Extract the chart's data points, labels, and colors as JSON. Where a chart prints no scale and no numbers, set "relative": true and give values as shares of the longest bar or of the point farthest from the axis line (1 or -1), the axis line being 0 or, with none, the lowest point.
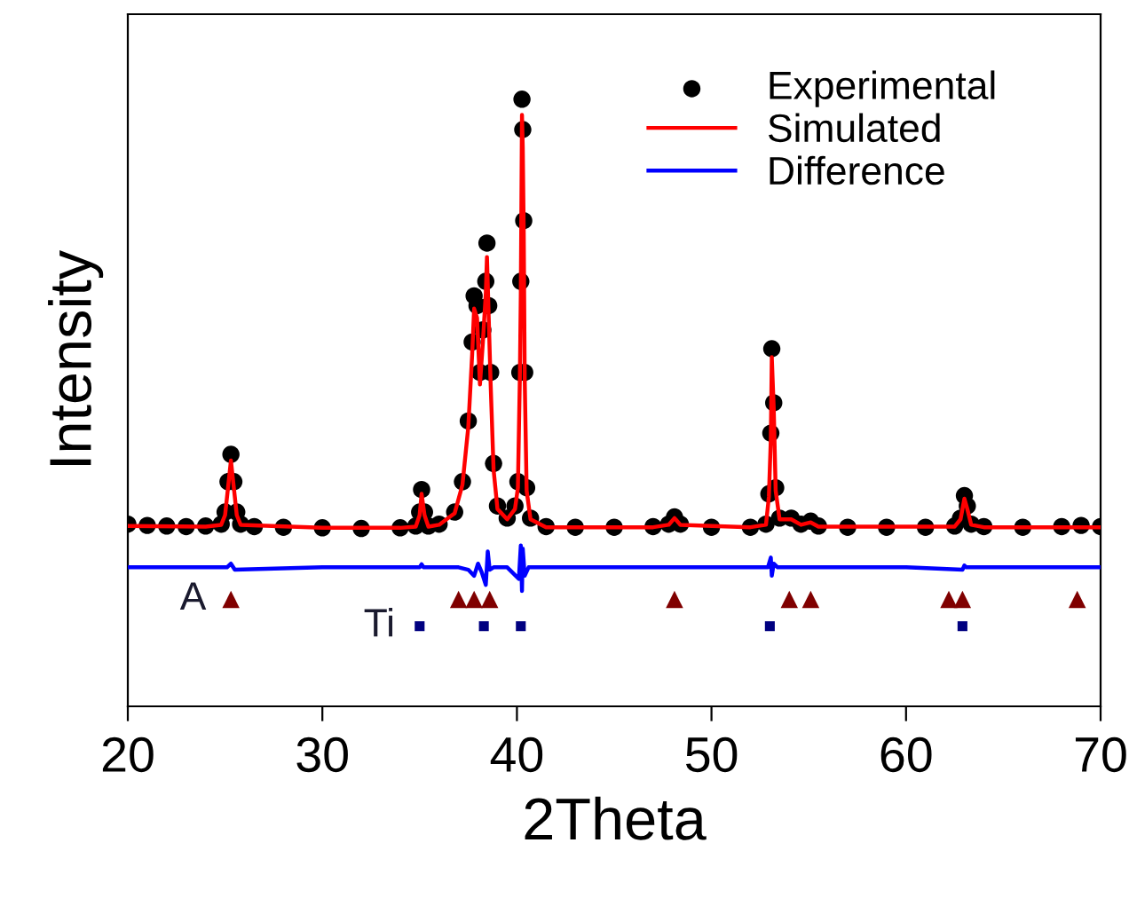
{
  "chart_data": {
    "type": "scatter",
    "relative": true,
    "xlabel": "2Theta",
    "ylabel": "Intensity",
    "xlim": [
      20,
      70
    ],
    "xticks": [
      20,
      30,
      40,
      50,
      60,
      70
    ],
    "grid": false,
    "legend": "top right",
    "series": [
      {
        "name": "Experimental",
        "marker": "circle",
        "color": "#000000",
        "x": [
          20,
          21,
          22,
          23,
          24,
          24.8,
          25.0,
          25.15,
          25.3,
          25.45,
          25.6,
          25.8,
          26.5,
          28,
          30,
          32,
          34,
          34.8,
          35.0,
          35.1,
          35.25,
          35.45,
          36,
          36.8,
          37.2,
          37.5,
          37.7,
          37.8,
          37.95,
          38.1,
          38.25,
          38.4,
          38.46,
          38.55,
          38.65,
          38.8,
          39.0,
          39.5,
          39.9,
          40.05,
          40.15,
          40.2,
          40.26,
          40.3,
          40.35,
          40.4,
          40.5,
          40.7,
          41.5,
          43,
          45,
          47,
          47.8,
          48.1,
          48.4,
          50,
          52,
          52.8,
          52.95,
          53.05,
          53.1,
          53.2,
          53.3,
          53.5,
          54.1,
          54.6,
          55.1,
          55.5,
          57,
          59,
          61,
          62.5,
          62.8,
          63.0,
          63.15,
          63.35,
          64,
          66,
          68,
          69,
          70
        ],
        "values": [
          0.3,
          0.298,
          0.297,
          0.296,
          0.297,
          0.3,
          0.32,
          0.37,
          0.415,
          0.37,
          0.32,
          0.3,
          0.296,
          0.295,
          0.294,
          0.293,
          0.294,
          0.297,
          0.32,
          0.357,
          0.32,
          0.297,
          0.3,
          0.32,
          0.37,
          0.47,
          0.6,
          0.676,
          0.66,
          0.55,
          0.62,
          0.7,
          0.763,
          0.66,
          0.55,
          0.4,
          0.33,
          0.31,
          0.33,
          0.37,
          0.55,
          0.7,
          1.0,
          0.95,
          0.8,
          0.55,
          0.36,
          0.31,
          0.296,
          0.295,
          0.295,
          0.296,
          0.3,
          0.312,
          0.3,
          0.295,
          0.295,
          0.3,
          0.35,
          0.45,
          0.589,
          0.5,
          0.36,
          0.31,
          0.31,
          0.3,
          0.305,
          0.297,
          0.295,
          0.295,
          0.295,
          0.297,
          0.31,
          0.347,
          0.33,
          0.3,
          0.296,
          0.295,
          0.296,
          0.298,
          0.296
        ]
      },
      {
        "name": "Simulated",
        "type": "line",
        "line_style": "solid",
        "color": "#ff0000",
        "x": [
          20,
          24,
          24.8,
          25.0,
          25.15,
          25.3,
          25.45,
          25.6,
          25.8,
          30,
          34,
          34.8,
          35.0,
          35.1,
          35.25,
          35.45,
          36,
          36.8,
          37.2,
          37.5,
          37.7,
          37.8,
          37.95,
          38.1,
          38.25,
          38.4,
          38.46,
          38.55,
          38.65,
          38.8,
          39.0,
          39.5,
          39.9,
          40.05,
          40.15,
          40.2,
          40.26,
          40.3,
          40.35,
          40.4,
          40.5,
          40.7,
          41.5,
          47,
          47.8,
          48.1,
          48.4,
          52,
          52.8,
          52.95,
          53.05,
          53.1,
          53.2,
          53.3,
          53.5,
          54.1,
          54.6,
          55.1,
          55.5,
          62.5,
          62.8,
          63.0,
          63.15,
          63.35,
          64,
          70
        ],
        "values": [
          0.297,
          0.296,
          0.299,
          0.315,
          0.36,
          0.405,
          0.36,
          0.315,
          0.299,
          0.294,
          0.294,
          0.296,
          0.315,
          0.35,
          0.315,
          0.296,
          0.299,
          0.318,
          0.365,
          0.46,
          0.58,
          0.655,
          0.64,
          0.53,
          0.6,
          0.68,
          0.74,
          0.64,
          0.53,
          0.39,
          0.325,
          0.308,
          0.325,
          0.36,
          0.54,
          0.68,
          0.974,
          0.92,
          0.78,
          0.54,
          0.355,
          0.308,
          0.295,
          0.295,
          0.299,
          0.31,
          0.299,
          0.295,
          0.299,
          0.345,
          0.44,
          0.575,
          0.49,
          0.355,
          0.308,
          0.308,
          0.299,
          0.303,
          0.296,
          0.296,
          0.308,
          0.342,
          0.325,
          0.299,
          0.295,
          0.295
        ]
      },
      {
        "name": "Difference",
        "type": "line",
        "line_style": "solid",
        "color": "#0000ff",
        "x": [
          20,
          25.1,
          25.3,
          25.5,
          30,
          35.0,
          35.1,
          35.2,
          37,
          37.5,
          37.8,
          38.0,
          38.2,
          38.4,
          38.5,
          38.6,
          38.8,
          39.5,
          40.1,
          40.2,
          40.26,
          40.3,
          40.4,
          40.6,
          45,
          52.9,
          53.05,
          53.1,
          53.2,
          53.4,
          60,
          62.9,
          63.0,
          63.1,
          70
        ],
        "values": [
          0.229,
          0.229,
          0.235,
          0.225,
          0.229,
          0.229,
          0.234,
          0.229,
          0.229,
          0.225,
          0.215,
          0.235,
          0.22,
          0.2,
          0.255,
          0.225,
          0.229,
          0.229,
          0.21,
          0.265,
          0.19,
          0.26,
          0.215,
          0.229,
          0.229,
          0.229,
          0.245,
          0.215,
          0.235,
          0.229,
          0.229,
          0.225,
          0.232,
          0.229,
          0.229
        ]
      },
      {
        "type": "scatter",
        "marker": "triangle",
        "color": "#800000",
        "x": [
          25.3,
          37.0,
          37.8,
          38.6,
          48.1,
          54.0,
          55.1,
          62.2,
          62.9,
          68.8
        ],
        "values": [
          0.176,
          0.176,
          0.176,
          0.176,
          0.176,
          0.176,
          0.176,
          0.176,
          0.176,
          0.176
        ]
      },
      {
        "type": "scatter",
        "marker": "square",
        "color": "#000080",
        "x": [
          35.0,
          38.3,
          40.2,
          53.0,
          62.9
        ],
        "values": [
          0.132,
          0.132,
          0.132,
          0.132,
          0.132
        ]
      }
    ],
    "annotations": [
      {
        "text": "A",
        "x": 25.3,
        "y": 0.176
      },
      {
        "text": "Ti",
        "x": 35.0,
        "y": 0.132
      }
    ]
  }
}
